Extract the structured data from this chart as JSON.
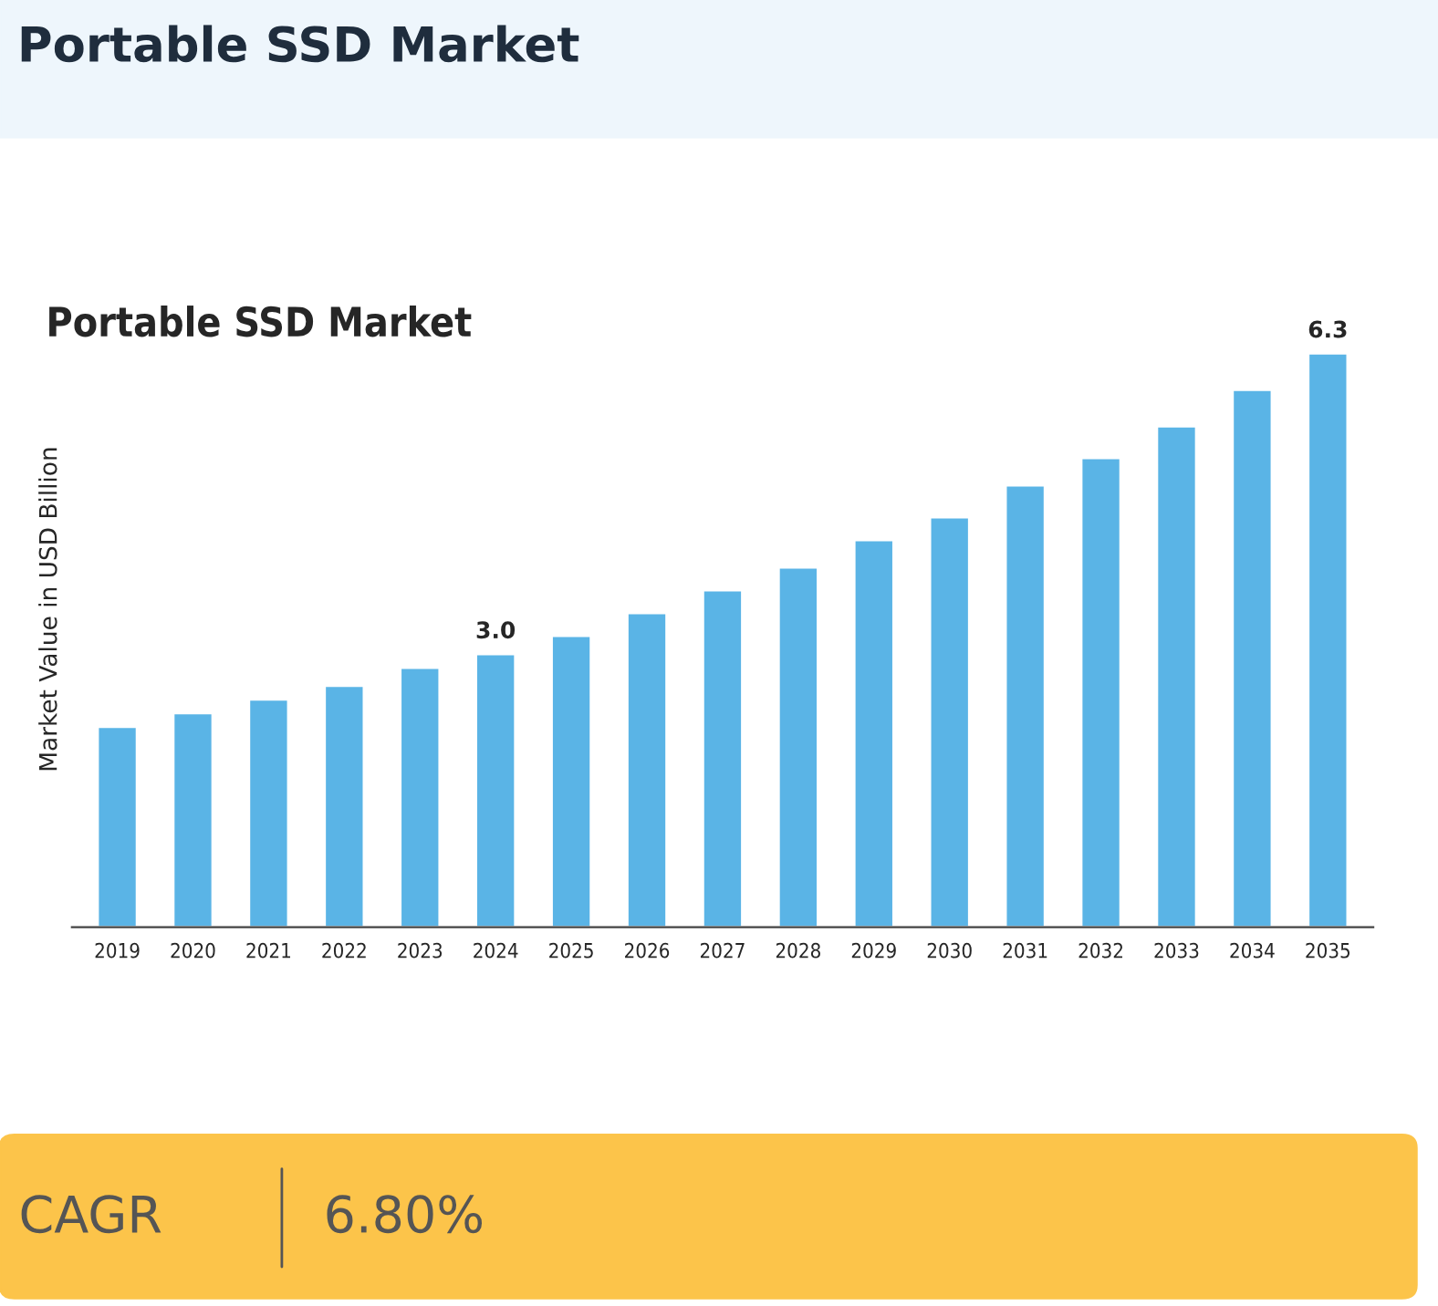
{
  "chart_data": {
    "type": "bar",
    "title": "Portable SSD Market",
    "subtitle": "Portable SSD Market",
    "ylabel": "Market Value in USD Billion",
    "categories": [
      "2019",
      "2020",
      "2021",
      "2022",
      "2023",
      "2024",
      "2025",
      "2026",
      "2027",
      "2028",
      "2029",
      "2030",
      "2031",
      "2032",
      "2033",
      "2034",
      "2035"
    ],
    "values": [
      2.2,
      2.35,
      2.5,
      2.65,
      2.85,
      3.0,
      3.2,
      3.45,
      3.7,
      3.95,
      4.25,
      4.5,
      4.85,
      5.15,
      5.5,
      5.9,
      6.3
    ],
    "value_labels": [
      null,
      null,
      null,
      null,
      null,
      "3.0",
      null,
      null,
      null,
      null,
      null,
      null,
      null,
      null,
      null,
      null,
      "6.3"
    ],
    "color": "#5ab4e6",
    "grid": false,
    "legend": false,
    "annotations": [
      "CAGR",
      "6.80%"
    ]
  }
}
